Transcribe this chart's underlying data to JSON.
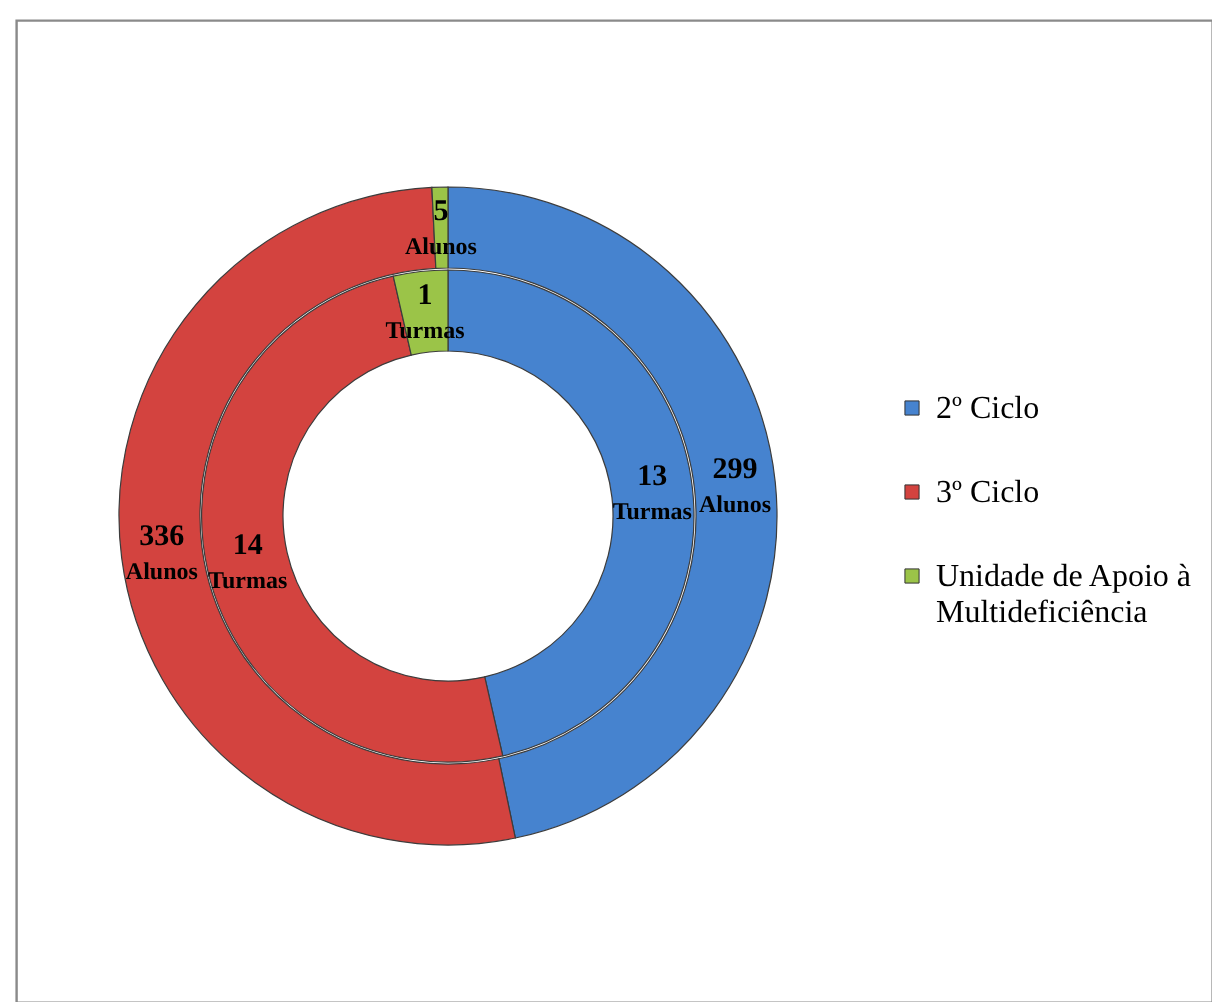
{
  "chart_data": {
    "type": "donut",
    "categories": [
      "2º Ciclo",
      "3º Ciclo",
      "Unidade de Apoio à Multideficiência"
    ],
    "colors": [
      "#4683cf",
      "#d3433f",
      "#9bc448"
    ],
    "series": [
      {
        "name": "Alunos",
        "values": [
          299,
          336,
          5
        ]
      },
      {
        "name": "Turmas",
        "values": [
          13,
          14,
          1
        ]
      }
    ],
    "data_labels": true,
    "legend": "right"
  }
}
